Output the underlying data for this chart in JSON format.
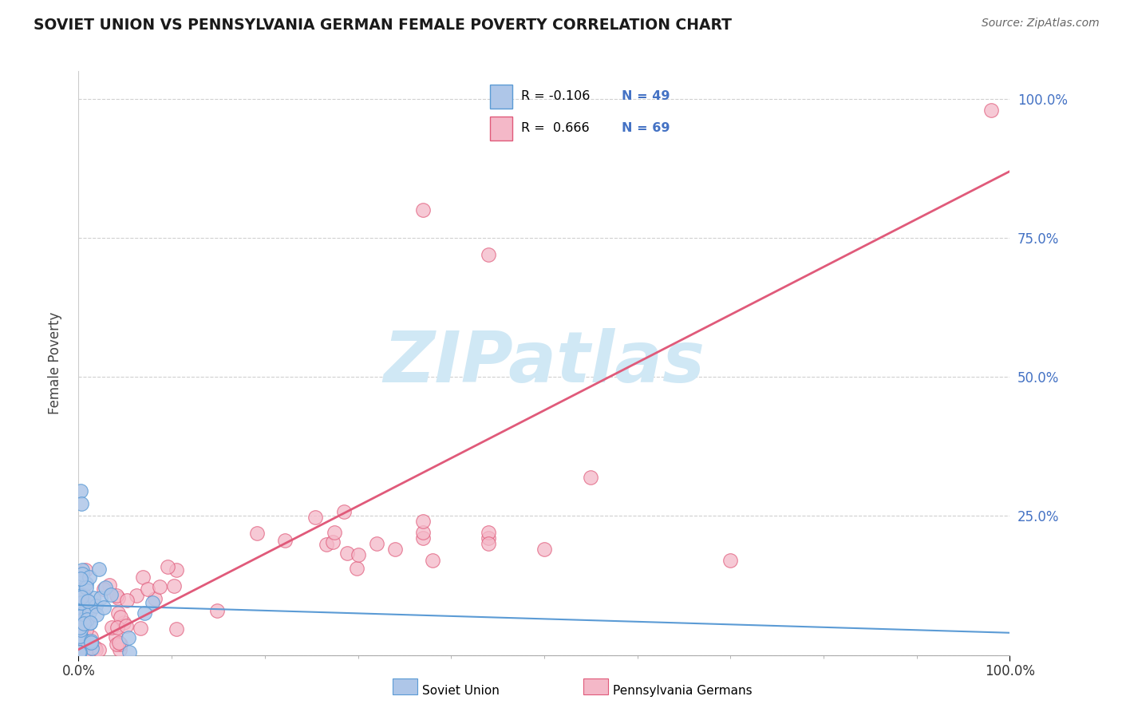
{
  "title": "SOVIET UNION VS PENNSYLVANIA GERMAN FEMALE POVERTY CORRELATION CHART",
  "source": "Source: ZipAtlas.com",
  "ylabel": "Female Poverty",
  "color_soviet": "#aec6e8",
  "color_soviet_edge": "#5b9bd5",
  "color_pg": "#f4b8c8",
  "color_pg_edge": "#e05a7a",
  "color_trendline_soviet": "#5b9bd5",
  "color_trendline_pg": "#e05a7a",
  "watermark_color": "#d0e8f5",
  "background_color": "#ffffff",
  "grid_color": "#d0d0d0",
  "title_color": "#1a1a1a",
  "source_color": "#666666",
  "ytick_color": "#4472c4",
  "legend_text_r_color": "#000000",
  "legend_text_n_color": "#4472c4"
}
